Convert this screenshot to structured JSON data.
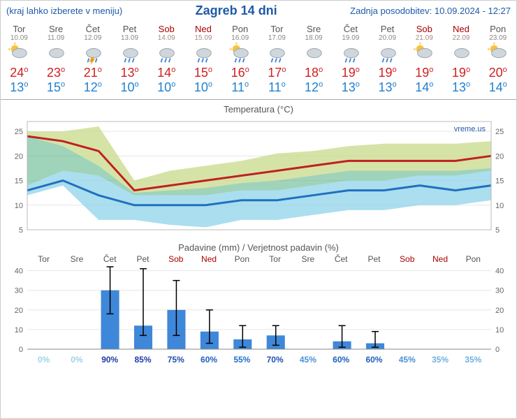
{
  "header": {
    "left_note": "(kraj lahko izberete v meniju)",
    "title": "Zagreb 14 dni",
    "updated": "Zadnja posodobitev: 10.09.2024 - 12:27"
  },
  "colors": {
    "link_blue": "#1e5aa8",
    "weekend": "#a00000",
    "temp_high": "#d02020",
    "temp_low": "#2080d0",
    "bar_fill": "#3f87d9",
    "grid": "#e6e6e6",
    "axis": "#888",
    "high_line": "#c02020",
    "low_line": "#2070c0",
    "high_band": "#c8d98a",
    "low_band": "#8fd3e8",
    "mid_band": "#5fb68c"
  },
  "days": [
    {
      "dow": "Tor",
      "date": "10.09",
      "weekend": false,
      "icon": "sun-cloud",
      "high": 24,
      "low": 13,
      "prob": 0,
      "prob_color": "#9fd3e8",
      "precip": 0,
      "err_lo": 0,
      "err_hi": 0
    },
    {
      "dow": "Sre",
      "date": "11.09",
      "weekend": false,
      "icon": "cloud",
      "high": 23,
      "low": 15,
      "prob": 0,
      "prob_color": "#9fd3e8",
      "precip": 0,
      "err_lo": 0,
      "err_hi": 0
    },
    {
      "dow": "Čet",
      "date": "12.09",
      "weekend": false,
      "icon": "storm",
      "high": 21,
      "low": 12,
      "prob": 90,
      "prob_color": "#1e3aa8",
      "precip": 30,
      "err_lo": 18,
      "err_hi": 42
    },
    {
      "dow": "Pet",
      "date": "13.09",
      "weekend": false,
      "icon": "rain",
      "high": 13,
      "low": 10,
      "prob": 85,
      "prob_color": "#1e3aa8",
      "precip": 12,
      "err_lo": 7,
      "err_hi": 41
    },
    {
      "dow": "Sob",
      "date": "14.09",
      "weekend": true,
      "icon": "rain",
      "high": 14,
      "low": 10,
      "prob": 75,
      "prob_color": "#1e50a8",
      "precip": 20,
      "err_lo": 7,
      "err_hi": 35
    },
    {
      "dow": "Ned",
      "date": "15.09",
      "weekend": true,
      "icon": "rain",
      "high": 15,
      "low": 10,
      "prob": 60,
      "prob_color": "#1e60c0",
      "precip": 9,
      "err_lo": 3,
      "err_hi": 20
    },
    {
      "dow": "Pon",
      "date": "16.09",
      "weekend": false,
      "icon": "sun-rain",
      "high": 16,
      "low": 11,
      "prob": 55,
      "prob_color": "#1e70c8",
      "precip": 5,
      "err_lo": 1,
      "err_hi": 12
    },
    {
      "dow": "Tor",
      "date": "17.09",
      "weekend": false,
      "icon": "rain",
      "high": 17,
      "low": 11,
      "prob": 70,
      "prob_color": "#1e50b0",
      "precip": 7,
      "err_lo": 2,
      "err_hi": 12
    },
    {
      "dow": "Sre",
      "date": "18.09",
      "weekend": false,
      "icon": "cloud",
      "high": 18,
      "low": 12,
      "prob": 45,
      "prob_color": "#4a90d8",
      "precip": 0,
      "err_lo": 0,
      "err_hi": 0
    },
    {
      "dow": "Čet",
      "date": "19.09",
      "weekend": false,
      "icon": "rain",
      "high": 19,
      "low": 13,
      "prob": 60,
      "prob_color": "#1e60c0",
      "precip": 4,
      "err_lo": 1,
      "err_hi": 12
    },
    {
      "dow": "Pet",
      "date": "20.09",
      "weekend": false,
      "icon": "rain",
      "high": 19,
      "low": 13,
      "prob": 60,
      "prob_color": "#1e60c0",
      "precip": 3,
      "err_lo": 1,
      "err_hi": 9
    },
    {
      "dow": "Sob",
      "date": "21.09",
      "weekend": true,
      "icon": "part-cloud",
      "high": 19,
      "low": 14,
      "prob": 45,
      "prob_color": "#4a90d8",
      "precip": 0,
      "err_lo": 0,
      "err_hi": 0
    },
    {
      "dow": "Ned",
      "date": "22.09",
      "weekend": true,
      "icon": "cloud",
      "high": 19,
      "low": 13,
      "prob": 35,
      "prob_color": "#70b0e0",
      "precip": 0,
      "err_lo": 0,
      "err_hi": 0
    },
    {
      "dow": "Pon",
      "date": "23.09",
      "weekend": false,
      "icon": "part-cloud",
      "high": 20,
      "low": 14,
      "prob": 35,
      "prob_color": "#70b0e0",
      "precip": 0,
      "err_lo": 0,
      "err_hi": 0
    }
  ],
  "temp_chart": {
    "title": "Temperatura (°C)",
    "watermark": "vreme.us",
    "ymin": 5,
    "ymax": 27,
    "yticks": [
      5,
      10,
      15,
      20,
      25
    ],
    "high_band_top": [
      25,
      25,
      26,
      15,
      17,
      18,
      19,
      20.5,
      21,
      22,
      22.5,
      22.5,
      22.5,
      23
    ],
    "high_line": [
      24,
      23,
      21,
      13,
      14,
      15,
      16,
      17,
      18,
      19,
      19,
      19,
      19,
      20
    ],
    "high_band_bot": [
      24,
      22,
      18,
      12.5,
      13,
      13.5,
      14.5,
      15,
      16,
      17,
      17,
      17,
      17,
      17.5
    ],
    "low_band_top": [
      14,
      17,
      16,
      12,
      12,
      12,
      13,
      13,
      14,
      15,
      15,
      16,
      16,
      17
    ],
    "low_line": [
      13,
      15,
      12,
      10,
      10,
      10,
      11,
      11,
      12,
      13,
      13,
      14,
      13,
      14
    ],
    "low_band_bot": [
      12,
      14,
      7,
      7,
      6,
      5.5,
      7,
      7,
      8,
      9,
      9,
      10,
      10,
      11
    ]
  },
  "precip_chart": {
    "title": "Padavine (mm) / Verjetnost padavin (%)",
    "ymin": 0,
    "ymax": 42,
    "yticks": [
      0,
      10,
      20,
      30,
      40
    ]
  }
}
